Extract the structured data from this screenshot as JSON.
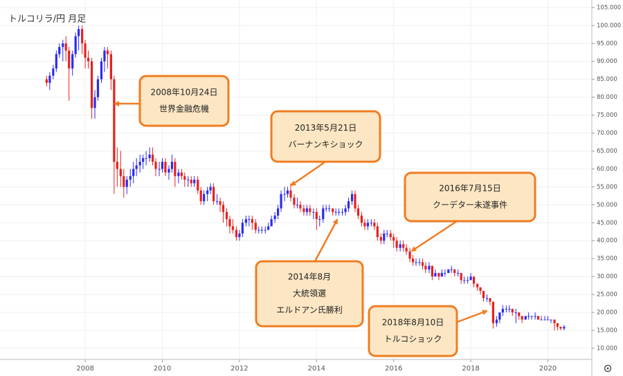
{
  "chart_data": {
    "type": "candlestick",
    "title": "トルコリラ/円  月足",
    "up_color": "#2b2bf0",
    "down_color": "#e6211d",
    "grid": true,
    "xlim": [
      2005.79,
      2021.14
    ],
    "xticks": [
      2008,
      2010,
      2012,
      2014,
      2016,
      2018,
      2020
    ],
    "ylim": [
      6.9,
      107.1
    ],
    "yticks": [
      {
        "value": 10,
        "label": "10.000"
      },
      {
        "value": 15,
        "label": "15.000"
      },
      {
        "value": 20,
        "label": "20.000"
      },
      {
        "value": 25,
        "label": "25.000"
      },
      {
        "value": 30,
        "label": "30.000"
      },
      {
        "value": 35,
        "label": "35.000"
      },
      {
        "value": 40,
        "label": "40.000"
      },
      {
        "value": 45,
        "label": "45.000"
      },
      {
        "value": 50,
        "label": "50.000"
      },
      {
        "value": 55,
        "label": "55.000"
      },
      {
        "value": 60,
        "label": "60.000"
      },
      {
        "value": 65,
        "label": "65.000"
      },
      {
        "value": 70,
        "label": "70.000"
      },
      {
        "value": 75,
        "label": "75.000"
      },
      {
        "value": 80,
        "label": "80.000"
      },
      {
        "value": 85,
        "label": "85.000"
      },
      {
        "value": 90,
        "label": "90.000"
      },
      {
        "value": 95,
        "label": "95.000"
      },
      {
        "value": 100,
        "label": "100.000"
      },
      {
        "value": 105,
        "label": "105.000"
      }
    ],
    "x": [
      2007,
      2007.08,
      2007.17,
      2007.25,
      2007.33,
      2007.42,
      2007.5,
      2007.58,
      2007.67,
      2007.75,
      2007.83,
      2007.92,
      2008,
      2008.08,
      2008.17,
      2008.25,
      2008.33,
      2008.42,
      2008.5,
      2008.58,
      2008.67,
      2008.75,
      2008.83,
      2008.92,
      2009,
      2009.08,
      2009.17,
      2009.25,
      2009.33,
      2009.42,
      2009.5,
      2009.58,
      2009.67,
      2009.75,
      2009.83,
      2009.92,
      2010,
      2010.08,
      2010.17,
      2010.25,
      2010.33,
      2010.42,
      2010.5,
      2010.58,
      2010.67,
      2010.75,
      2010.83,
      2010.92,
      2011,
      2011.08,
      2011.17,
      2011.25,
      2011.33,
      2011.42,
      2011.5,
      2011.58,
      2011.67,
      2011.75,
      2011.83,
      2011.92,
      2012,
      2012.08,
      2012.17,
      2012.25,
      2012.33,
      2012.42,
      2012.5,
      2012.58,
      2012.67,
      2012.75,
      2012.83,
      2012.92,
      2013,
      2013.08,
      2013.17,
      2013.25,
      2013.33,
      2013.42,
      2013.5,
      2013.58,
      2013.67,
      2013.75,
      2013.83,
      2013.92,
      2014,
      2014.08,
      2014.17,
      2014.25,
      2014.33,
      2014.42,
      2014.5,
      2014.58,
      2014.67,
      2014.75,
      2014.83,
      2014.92,
      2015,
      2015.08,
      2015.17,
      2015.25,
      2015.33,
      2015.42,
      2015.5,
      2015.58,
      2015.67,
      2015.75,
      2015.83,
      2015.92,
      2016,
      2016.08,
      2016.17,
      2016.25,
      2016.33,
      2016.42,
      2016.5,
      2016.58,
      2016.67,
      2016.75,
      2016.83,
      2016.92,
      2017,
      2017.08,
      2017.17,
      2017.25,
      2017.33,
      2017.42,
      2017.5,
      2017.58,
      2017.67,
      2017.75,
      2017.83,
      2017.92,
      2018,
      2018.08,
      2018.17,
      2018.25,
      2018.33,
      2018.42,
      2018.5,
      2018.58,
      2018.67,
      2018.75,
      2018.83,
      2018.92,
      2019,
      2019.08,
      2019.17,
      2019.25,
      2019.33,
      2019.42,
      2019.5,
      2019.58,
      2019.67,
      2019.75,
      2019.83,
      2019.92,
      2020,
      2020.08,
      2020.17,
      2020.25,
      2020.33,
      2020.42
    ],
    "ohlc": [
      [
        85,
        86,
        83,
        84
      ],
      [
        84,
        87,
        82,
        86
      ],
      [
        86,
        89,
        85,
        88
      ],
      [
        88,
        93,
        87,
        92
      ],
      [
        92,
        95,
        91,
        94
      ],
      [
        94,
        96,
        90,
        95
      ],
      [
        95,
        97,
        90,
        93
      ],
      [
        93,
        94,
        79,
        88
      ],
      [
        88,
        93,
        86,
        92
      ],
      [
        92,
        98,
        91,
        97
      ],
      [
        97,
        100,
        93,
        99
      ],
      [
        99,
        100,
        92,
        95
      ],
      [
        95,
        96,
        88,
        91
      ],
      [
        91,
        93,
        88,
        90
      ],
      [
        90,
        91,
        74,
        77
      ],
      [
        77,
        82,
        74,
        80
      ],
      [
        80,
        86,
        79,
        85
      ],
      [
        85,
        91,
        84,
        90
      ],
      [
        90,
        94,
        87,
        93
      ],
      [
        93,
        94,
        88,
        92
      ],
      [
        92,
        93,
        82,
        85
      ],
      [
        85,
        86,
        53,
        62
      ],
      [
        62,
        66,
        55,
        60
      ],
      [
        60,
        65,
        55,
        58
      ],
      [
        58,
        60,
        52,
        55
      ],
      [
        55,
        58,
        53,
        57
      ],
      [
        57,
        60,
        55,
        58
      ],
      [
        58,
        62,
        56,
        60
      ],
      [
        60,
        63,
        58,
        61
      ],
      [
        61,
        64,
        59,
        62
      ],
      [
        62,
        64,
        60,
        63
      ],
      [
        63,
        65,
        61,
        63
      ],
      [
        63,
        66,
        62,
        64
      ],
      [
        64,
        66,
        61,
        62
      ],
      [
        62,
        63,
        58,
        60
      ],
      [
        60,
        62,
        58,
        60
      ],
      [
        60,
        63,
        59,
        62
      ],
      [
        62,
        63,
        58,
        59
      ],
      [
        59,
        61,
        57,
        60
      ],
      [
        60,
        64,
        59,
        62
      ],
      [
        62,
        63,
        55,
        58
      ],
      [
        58,
        60,
        56,
        59
      ],
      [
        59,
        60,
        57,
        58
      ],
      [
        58,
        59,
        55,
        57
      ],
      [
        57,
        58,
        55,
        57
      ],
      [
        57,
        58,
        55,
        56
      ],
      [
        56,
        58,
        55,
        57
      ],
      [
        57,
        58,
        53,
        54
      ],
      [
        54,
        55,
        50,
        51
      ],
      [
        51,
        54,
        50,
        53
      ],
      [
        53,
        55,
        51,
        54
      ],
      [
        54,
        56,
        53,
        55
      ],
      [
        55,
        56,
        50,
        51
      ],
      [
        51,
        53,
        50,
        51
      ],
      [
        51,
        52,
        48,
        50
      ],
      [
        50,
        51,
        45,
        48
      ],
      [
        48,
        49,
        44,
        46
      ],
      [
        46,
        47,
        42,
        44
      ],
      [
        44,
        46,
        42,
        43
      ],
      [
        43,
        44,
        40,
        41
      ],
      [
        41,
        43,
        40,
        42
      ],
      [
        42,
        46,
        41,
        45
      ],
      [
        45,
        47,
        44,
        46
      ],
      [
        46,
        47,
        44,
        46
      ],
      [
        46,
        47,
        43,
        45
      ],
      [
        45,
        46,
        42,
        43
      ],
      [
        43,
        44,
        42,
        43
      ],
      [
        43,
        44,
        42,
        43
      ],
      [
        43,
        44,
        42,
        43
      ],
      [
        43,
        45,
        43,
        44
      ],
      [
        44,
        47,
        44,
        46
      ],
      [
        46,
        48,
        45,
        47
      ],
      [
        47,
        50,
        46,
        49
      ],
      [
        49,
        54,
        48,
        53
      ],
      [
        53,
        55,
        51,
        53
      ],
      [
        53,
        55,
        52,
        54
      ],
      [
        54,
        56,
        51,
        52
      ],
      [
        52,
        53,
        49,
        50
      ],
      [
        50,
        52,
        49,
        50
      ],
      [
        50,
        51,
        48,
        49
      ],
      [
        49,
        50,
        47,
        48
      ],
      [
        48,
        50,
        47,
        49
      ],
      [
        49,
        50,
        47,
        48
      ],
      [
        48,
        49,
        46,
        48
      ],
      [
        48,
        49,
        43,
        46
      ],
      [
        46,
        47,
        44,
        46
      ],
      [
        46,
        50,
        45,
        49
      ],
      [
        49,
        50,
        48,
        49
      ],
      [
        49,
        50,
        48,
        49
      ],
      [
        49,
        49,
        47,
        48
      ],
      [
        48,
        49,
        47,
        48
      ],
      [
        48,
        49,
        47,
        48
      ],
      [
        48,
        49,
        47,
        48
      ],
      [
        48,
        50,
        47,
        49
      ],
      [
        49,
        52,
        48,
        51
      ],
      [
        51,
        54,
        50,
        53
      ],
      [
        53,
        54,
        48,
        49
      ],
      [
        49,
        50,
        46,
        47
      ],
      [
        47,
        48,
        44,
        45
      ],
      [
        45,
        46,
        43,
        44
      ],
      [
        44,
        46,
        43,
        45
      ],
      [
        45,
        46,
        44,
        45
      ],
      [
        45,
        46,
        43,
        44
      ],
      [
        44,
        45,
        40,
        41
      ],
      [
        41,
        42,
        39,
        40
      ],
      [
        40,
        43,
        39,
        42
      ],
      [
        42,
        43,
        41,
        42
      ],
      [
        42,
        43,
        40,
        41
      ],
      [
        41,
        42,
        38,
        40
      ],
      [
        40,
        41,
        37,
        38
      ],
      [
        38,
        40,
        37,
        39
      ],
      [
        39,
        40,
        37,
        38
      ],
      [
        38,
        39,
        36,
        37
      ],
      [
        37,
        38,
        34,
        35
      ],
      [
        35,
        36,
        33,
        34
      ],
      [
        34,
        35,
        33,
        34
      ],
      [
        34,
        35,
        33,
        34
      ],
      [
        34,
        35,
        32,
        33
      ],
      [
        33,
        34,
        31,
        32
      ],
      [
        32,
        34,
        31,
        33
      ],
      [
        33,
        33,
        29,
        30
      ],
      [
        30,
        32,
        30,
        31
      ],
      [
        31,
        31,
        29,
        30
      ],
      [
        30,
        32,
        30,
        31
      ],
      [
        31,
        32,
        30,
        31
      ],
      [
        31,
        32,
        31,
        32
      ],
      [
        32,
        33,
        31,
        32
      ],
      [
        32,
        32,
        30,
        31
      ],
      [
        31,
        32,
        30,
        31
      ],
      [
        31,
        31,
        28,
        29
      ],
      [
        29,
        30,
        28,
        29
      ],
      [
        29,
        30,
        28,
        29
      ],
      [
        29,
        31,
        29,
        30
      ],
      [
        30,
        30,
        27,
        28
      ],
      [
        28,
        28,
        26,
        27
      ],
      [
        27,
        27,
        25,
        26
      ],
      [
        26,
        26,
        23,
        24
      ],
      [
        24,
        25,
        23,
        24
      ],
      [
        24,
        24,
        22,
        23
      ],
      [
        23,
        23,
        15.5,
        17
      ],
      [
        17,
        19,
        16,
        18
      ],
      [
        18,
        20,
        17,
        20
      ],
      [
        20,
        22,
        19,
        21
      ],
      [
        21,
        22,
        20,
        21
      ],
      [
        21,
        22,
        20,
        21
      ],
      [
        21,
        21,
        19,
        20
      ],
      [
        20,
        21,
        17,
        20
      ],
      [
        20,
        20,
        18,
        19
      ],
      [
        19,
        19,
        17,
        18
      ],
      [
        18,
        19,
        18,
        19
      ],
      [
        19,
        20,
        18,
        19
      ],
      [
        19,
        19,
        18,
        19
      ],
      [
        19,
        20,
        18,
        19
      ],
      [
        19,
        19,
        18,
        18
      ],
      [
        18,
        19,
        18,
        18
      ],
      [
        18,
        19,
        18,
        18
      ],
      [
        18,
        19,
        18,
        18
      ],
      [
        18,
        18,
        17,
        18
      ],
      [
        18,
        18,
        15,
        17
      ],
      [
        17,
        17,
        15,
        16
      ],
      [
        16,
        16,
        15,
        15.5
      ],
      [
        15.5,
        16.5,
        15,
        16
      ]
    ],
    "annotations": [
      {
        "lines": [
          "2008年10月24日",
          "世界金融危機"
        ]
      },
      {
        "lines": [
          "2013年5月21日",
          "バーナンキショック"
        ]
      },
      {
        "lines": [
          "2016年7月15日",
          "クーデター未遂事件"
        ]
      },
      {
        "lines": [
          "2014年8月",
          "大統領選",
          "エルドアン氏勝利"
        ]
      },
      {
        "lines": [
          "2018年8月10日",
          "トルコショック"
        ]
      }
    ]
  }
}
